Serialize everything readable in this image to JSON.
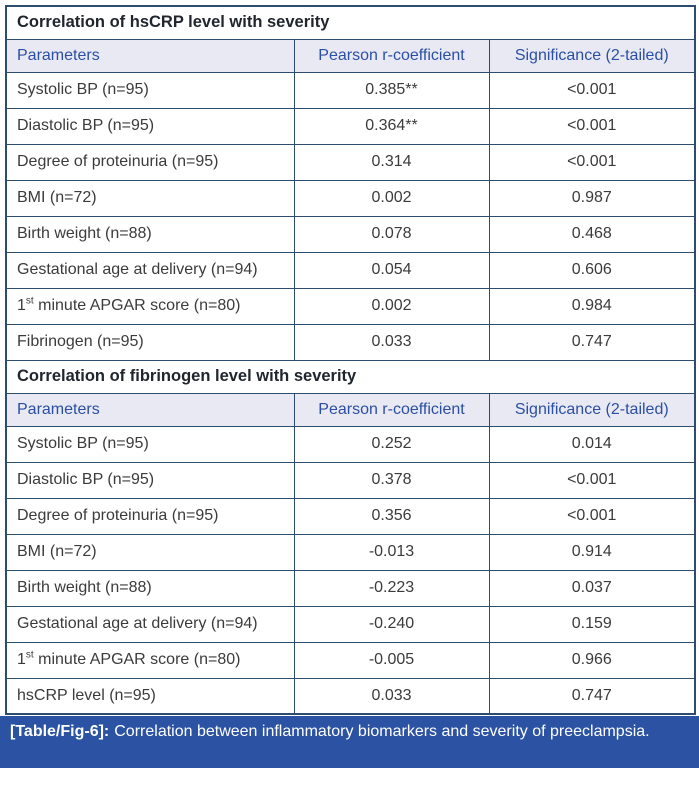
{
  "figure": {
    "tables": [
      {
        "title": "Correlation of hsCRP level with severity",
        "headers": [
          "Parameters",
          "Pearson r-coefficient",
          "Significance (2-tailed)"
        ],
        "rows": [
          [
            "Systolic BP (n=95)",
            "0.385**",
            "<0.001"
          ],
          [
            "Diastolic BP (n=95)",
            "0.364**",
            "<0.001"
          ],
          [
            "Degree of proteinuria (n=95)",
            "0.314",
            "<0.001"
          ],
          [
            "BMI (n=72)",
            "0.002",
            "0.987"
          ],
          [
            "Birth weight (n=88)",
            "0.078",
            "0.468"
          ],
          [
            "Gestational age at delivery (n=94)",
            "0.054",
            "0.606"
          ],
          [
            "1^st^ minute APGAR score (n=80)",
            "0.002",
            "0.984"
          ],
          [
            "Fibrinogen (n=95)",
            "0.033",
            "0.747"
          ]
        ]
      },
      {
        "title": "Correlation of fibrinogen level with severity",
        "headers": [
          "Parameters",
          "Pearson r-coefficient",
          "Significance (2-tailed)"
        ],
        "rows": [
          [
            "Systolic BP (n=95)",
            "0.252",
            "0.014"
          ],
          [
            "Diastolic BP (n=95)",
            "0.378",
            "<0.001"
          ],
          [
            "Degree of proteinuria (n=95)",
            "0.356",
            "<0.001"
          ],
          [
            "BMI (n=72)",
            "-0.013",
            "0.914"
          ],
          [
            "Birth weight (n=88)",
            "-0.223",
            "0.037"
          ],
          [
            "Gestational age at delivery (n=94)",
            "-0.240",
            "0.159"
          ],
          [
            "1^st^ minute APGAR score (n=80)",
            "-0.005",
            "0.966"
          ],
          [
            "hsCRP level (n=95)",
            "0.033",
            "0.747"
          ]
        ]
      }
    ],
    "caption": {
      "label": "[Table/Fig-6]:",
      "text": "Correlation between inflammatory biomarkers and severity of preeclampsia."
    },
    "colors": {
      "border": "#2d4d6e",
      "header_bg": "#e9e9f4",
      "header_text": "#2b4fa2",
      "caption_bg": "#2b52a3",
      "caption_text": "#ffffff",
      "body_text": "#3b3b3b",
      "section_title_text": "#21262e"
    }
  }
}
